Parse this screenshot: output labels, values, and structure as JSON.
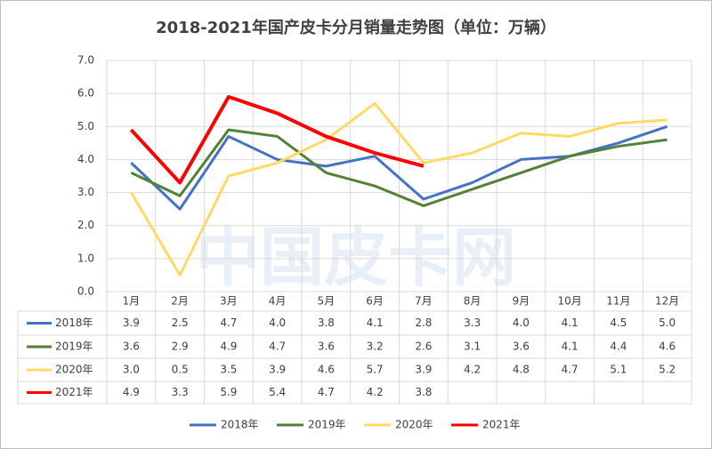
{
  "chart_data": {
    "type": "line",
    "title": "2018-2021年国产皮卡分月销量走势图（单位：万辆）",
    "watermark": "中国皮卡网",
    "categories": [
      "1月",
      "2月",
      "3月",
      "4月",
      "5月",
      "6月",
      "7月",
      "8月",
      "9月",
      "10月",
      "11月",
      "12月"
    ],
    "series": [
      {
        "name": "2018年",
        "color": "#4472c4",
        "values": [
          3.9,
          2.5,
          4.7,
          4.0,
          3.8,
          4.1,
          2.8,
          3.3,
          4.0,
          4.1,
          4.5,
          5.0
        ],
        "value_labels": [
          "3.9",
          "2.5",
          "4.7",
          "4.0",
          "3.8",
          "4.1",
          "2.8",
          "3.3",
          "4.0",
          "4.1",
          "4.5",
          "5.0"
        ]
      },
      {
        "name": "2019年",
        "color": "#548235",
        "values": [
          3.6,
          2.9,
          4.9,
          4.7,
          3.6,
          3.2,
          2.6,
          3.1,
          3.6,
          4.1,
          4.4,
          4.6
        ],
        "value_labels": [
          "3.6",
          "2.9",
          "4.9",
          "4.7",
          "3.6",
          "3.2",
          "2.6",
          "3.1",
          "3.6",
          "4.1",
          "4.4",
          "4.6"
        ]
      },
      {
        "name": "2020年",
        "color": "#ffd966",
        "values": [
          3.0,
          0.5,
          3.5,
          3.9,
          4.6,
          5.7,
          3.9,
          4.2,
          4.8,
          4.7,
          5.1,
          5.2
        ],
        "value_labels": [
          "3.0",
          "0.5",
          "3.5",
          "3.9",
          "4.6",
          "5.7",
          "3.9",
          "4.2",
          "4.8",
          "4.7",
          "5.1",
          "5.2"
        ]
      },
      {
        "name": "2021年",
        "color": "#ff0000",
        "values": [
          4.9,
          3.3,
          5.9,
          5.4,
          4.7,
          4.2,
          3.8,
          null,
          null,
          null,
          null,
          null
        ],
        "value_labels": [
          "4.9",
          "3.3",
          "5.9",
          "5.4",
          "4.7",
          "4.2",
          "3.8",
          null,
          null,
          null,
          null,
          null
        ]
      }
    ],
    "ylim": [
      0,
      7
    ],
    "yticks": [
      {
        "value": 0,
        "label": "0.0"
      },
      {
        "value": 1,
        "label": "1.0"
      },
      {
        "value": 2,
        "label": "2.0"
      },
      {
        "value": 3,
        "label": "3.0"
      },
      {
        "value": 4,
        "label": "4.0"
      },
      {
        "value": 5,
        "label": "5.0"
      },
      {
        "value": 6,
        "label": "6.0"
      },
      {
        "value": 7,
        "label": "7.0"
      }
    ],
    "grid": true,
    "legend": "bottom"
  }
}
